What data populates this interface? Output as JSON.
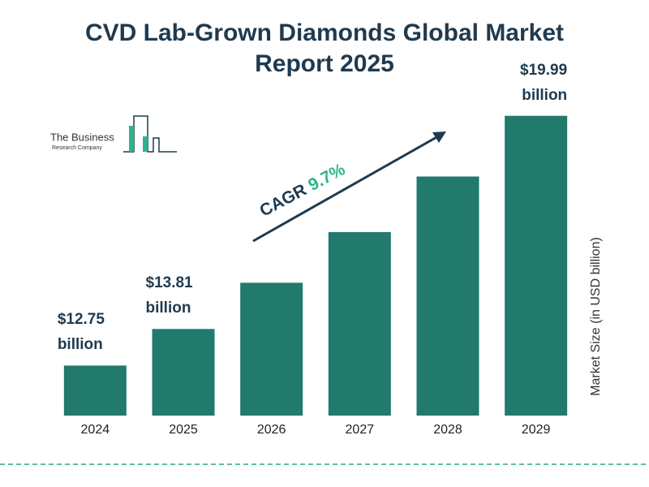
{
  "chart_data": {
    "type": "bar",
    "title": "CVD Lab-Grown Diamonds Global Market Report 2025",
    "categories": [
      "2024",
      "2025",
      "2026",
      "2027",
      "2028",
      "2029"
    ],
    "values": [
      12.75,
      13.81,
      15.15,
      16.62,
      18.23,
      19.99
    ],
    "value_labels": [
      "$12.75 billion",
      "$13.81 billion",
      null,
      null,
      null,
      "$19.99 billion"
    ],
    "color": "#217a6b",
    "ylim": [
      11.3,
      20.5
    ],
    "y_axis_label": "Market Size (in USD billion)",
    "cagr_label": "CAGR",
    "cagr_value": "9.7%",
    "logo_line1": "The Business",
    "logo_line2": "Research Company"
  }
}
